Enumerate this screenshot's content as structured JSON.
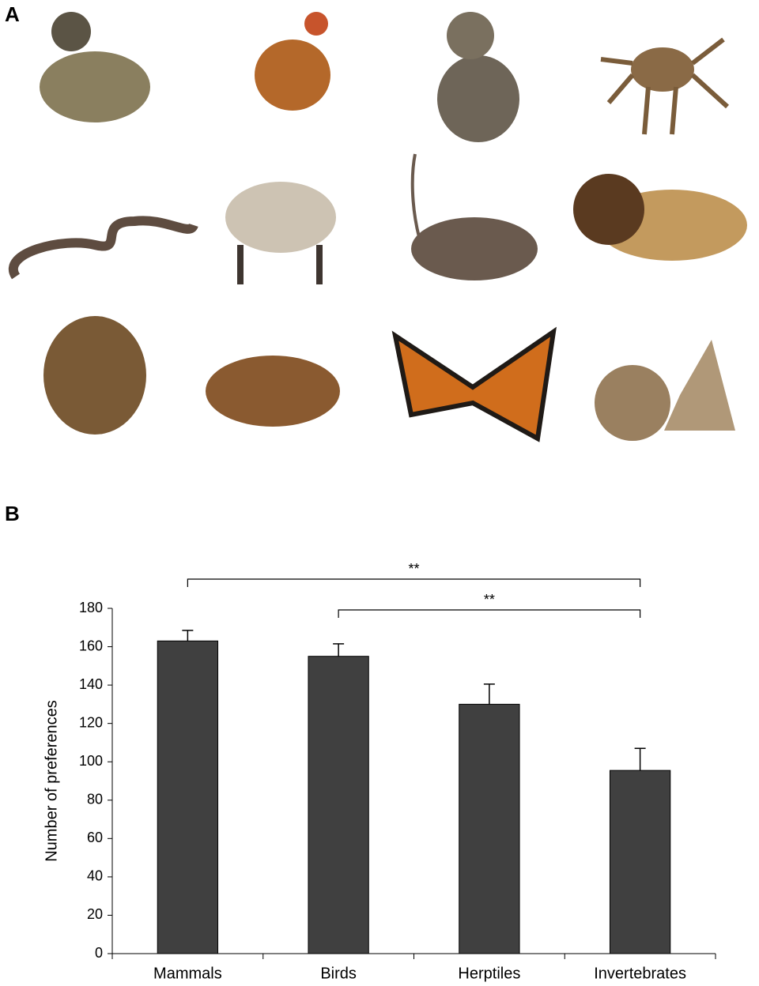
{
  "panel_labels": [
    "A",
    "B"
  ],
  "chart_data": {
    "type": "bar",
    "y_label": "Number of preferences",
    "categories": [
      "Mammals",
      "Birds",
      "Herptiles",
      "Invertebrates"
    ],
    "values": [
      163,
      155,
      130,
      95.5
    ],
    "errors": [
      5.5,
      6.5,
      10.5,
      11.5
    ],
    "color": "#404040",
    "ylim": [
      0,
      180
    ],
    "yticks": [
      0,
      20,
      40,
      60,
      80,
      100,
      120,
      140,
      160,
      180
    ],
    "grid": false,
    "annotations": [
      {
        "from": 0,
        "to": 3,
        "label": "**"
      },
      {
        "from": 1,
        "to": 3,
        "label": "**"
      }
    ]
  }
}
